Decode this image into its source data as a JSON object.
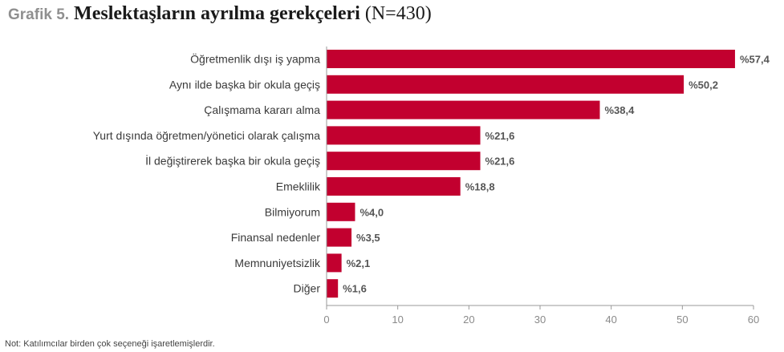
{
  "header": {
    "figure_label": "Grafik 5.",
    "title_main": "Meslektaşların ayrılma gerekçeleri",
    "title_n": "(N=430)"
  },
  "note": "Not: Katılımcılar birden çok seçeneği işaretlemişlerdir.",
  "colors": {
    "bar": "#c2002f",
    "axis": "#999999",
    "grid": "#dddddd"
  },
  "chart_data": {
    "type": "bar",
    "orientation": "horizontal",
    "title": "Meslektaşların ayrılma gerekçeleri (N=430)",
    "categories": [
      "Öğretmenlik dışı iş yapma",
      "Aynı ilde başka bir okula geçiş",
      "Çalışmama kararı alma",
      "Yurt dışında öğretmen/yönetici olarak çalışma",
      "İl değiştirerek başka bir okula geçiş",
      "Emeklilik",
      "Bilmiyorum",
      "Finansal nedenler",
      "Memnuniyetsizlik",
      "Diğer"
    ],
    "values": [
      57.4,
      50.2,
      38.4,
      21.6,
      21.6,
      18.8,
      4.0,
      3.5,
      2.1,
      1.6
    ],
    "value_labels": [
      "%57,4",
      "%50,2",
      "%38,4",
      "%21,6",
      "%21,6",
      "%18,8",
      "%4,0",
      "%3,5",
      "%2,1",
      "%1,6"
    ],
    "xlim": [
      0,
      60
    ],
    "xticks": [
      0,
      10,
      20,
      30,
      40,
      50,
      60
    ],
    "grid": false
  }
}
